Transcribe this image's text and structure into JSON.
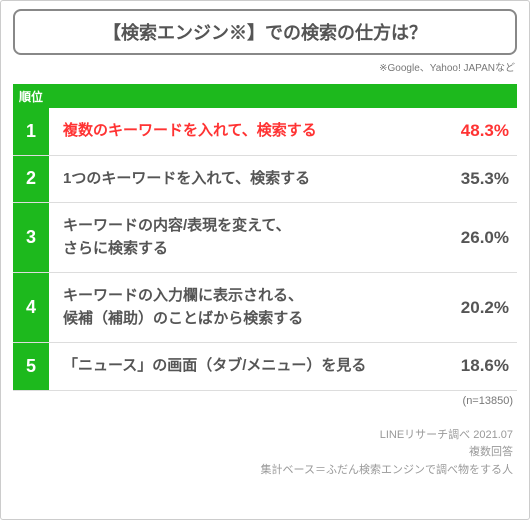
{
  "title": "【検索エンジン※】での検索の仕方は？",
  "subtitle": "※Google、Yahoo! JAPANなど",
  "colors": {
    "accent_green": "#1db91d",
    "highlight_red": "#ff3333",
    "text_normal": "#555555",
    "border_gray": "#888888",
    "row_border": "#dddddd",
    "footer_text": "#999999"
  },
  "table": {
    "rank_header": "順位",
    "rows": [
      {
        "rank": "1",
        "text": "複数のキーワードを入れて、検索する",
        "pct": "48.3%",
        "highlight": true
      },
      {
        "rank": "2",
        "text": "1つのキーワードを入れて、検索する",
        "pct": "35.3%",
        "highlight": false
      },
      {
        "rank": "3",
        "text": "キーワードの内容/表現を変えて、\nさらに検索する",
        "pct": "26.0%",
        "highlight": false
      },
      {
        "rank": "4",
        "text": "キーワードの入力欄に表示される、\n候補（補助）のことばから検索する",
        "pct": "20.2%",
        "highlight": false
      },
      {
        "rank": "5",
        "text": "「ニュース」の画面（タブ/メニュー）を見る",
        "pct": "18.6%",
        "highlight": false
      }
    ]
  },
  "n_note": "(n=13850)",
  "footer": {
    "line1": "LINEリサーチ調べ 2021.07",
    "line2": "複数回答",
    "line3": "集計ベース＝ふだん検索エンジンで調べ物をする人"
  }
}
